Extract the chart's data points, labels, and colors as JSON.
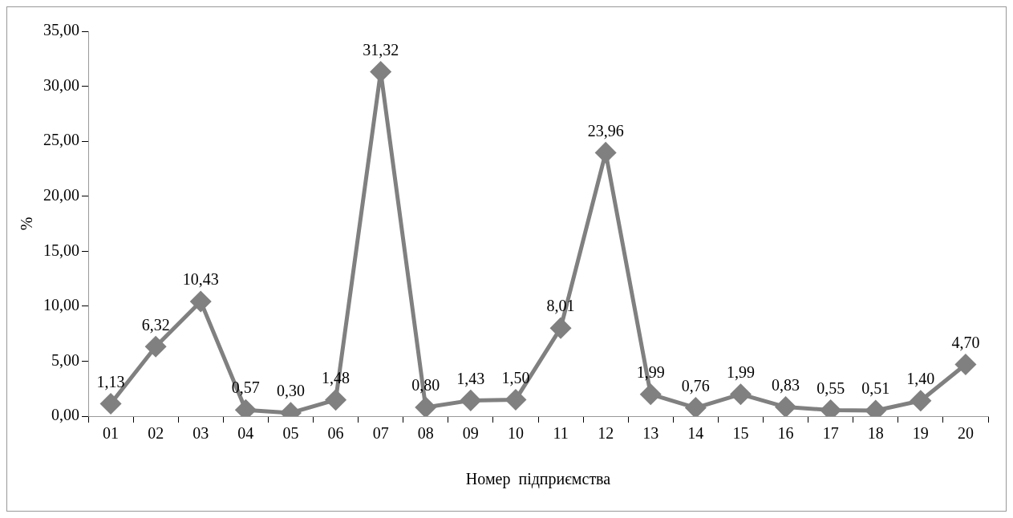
{
  "chart_data": {
    "type": "line",
    "xlabel": "Номер  підприємства",
    "ylabel": "%",
    "categories": [
      "01",
      "02",
      "03",
      "04",
      "05",
      "06",
      "07",
      "08",
      "09",
      "10",
      "11",
      "12",
      "13",
      "14",
      "15",
      "16",
      "17",
      "18",
      "19",
      "20"
    ],
    "series": [
      {
        "color": "#808080",
        "values": [
          1.13,
          6.32,
          10.43,
          0.57,
          0.3,
          1.48,
          31.32,
          0.8,
          1.43,
          1.5,
          8.01,
          23.96,
          1.99,
          0.76,
          1.99,
          0.83,
          0.55,
          0.51,
          1.4,
          4.7
        ],
        "value_labels": [
          "1,13",
          "6,32",
          "10,43",
          "0,57",
          "0,30",
          "1,48",
          "31,32",
          "0,80",
          "1,43",
          "1,50",
          "8,01",
          "23,96",
          "1,99",
          "0,76",
          "1,99",
          "0,83",
          "0,55",
          "0,51",
          "1,40",
          "4,70"
        ]
      }
    ],
    "ylim": [
      0,
      35
    ],
    "yticks": [
      {
        "value": 0,
        "label": "0,00"
      },
      {
        "value": 5,
        "label": "5,00"
      },
      {
        "value": 10,
        "label": "10,00"
      },
      {
        "value": 15,
        "label": "15,00"
      },
      {
        "value": 20,
        "label": "20,00"
      },
      {
        "value": 25,
        "label": "25,00"
      },
      {
        "value": 30,
        "label": "30,00"
      },
      {
        "value": 35,
        "label": "35,00"
      }
    ],
    "grid": false,
    "legend": false,
    "marker": "diamond",
    "line_style": "solid"
  }
}
